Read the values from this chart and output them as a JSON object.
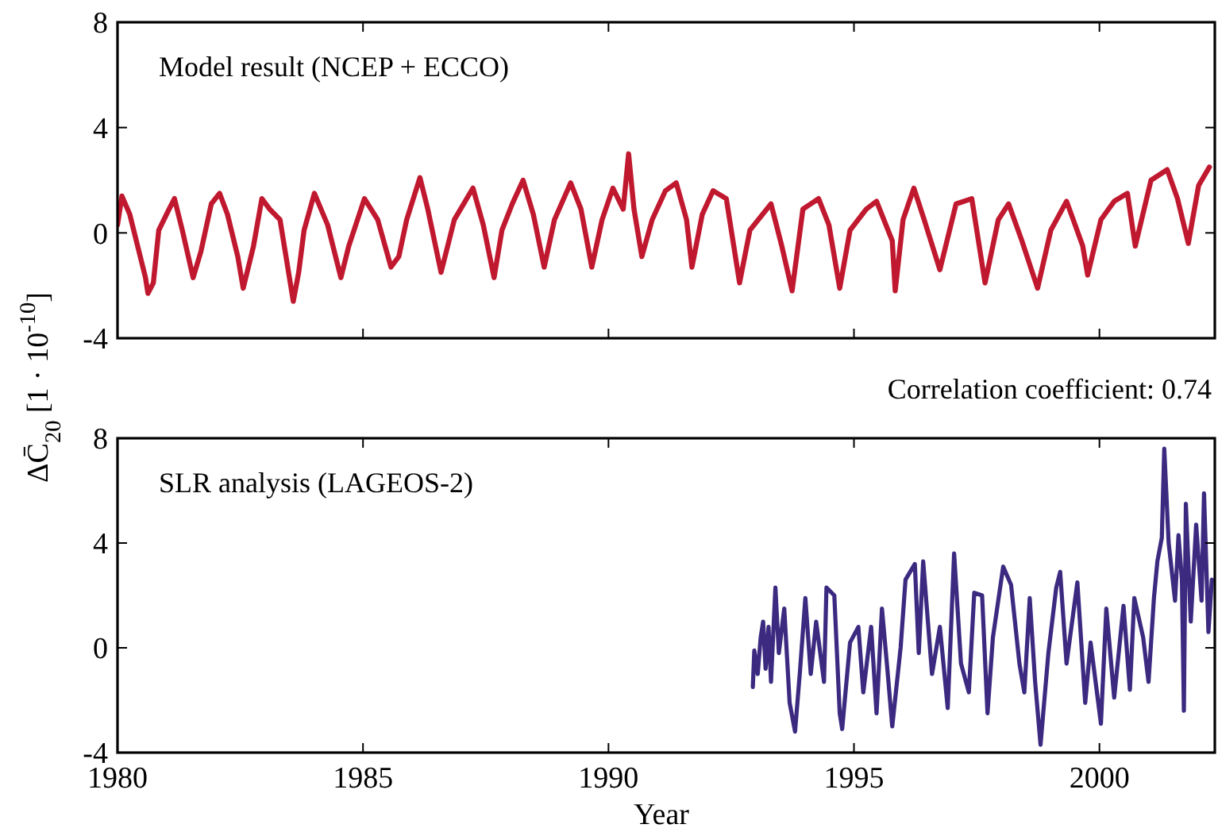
{
  "chart_data": [
    {
      "type": "line",
      "xlim": [
        1980,
        2002.35
      ],
      "xticks": [
        1980,
        1985,
        1990,
        1995,
        2000
      ],
      "ylim": [
        -4,
        8
      ],
      "yticks": [
        -4,
        0,
        4,
        8
      ],
      "tick_labels": "y",
      "grid": false,
      "ylabel": "ΔC̄$_{20}$  [1 · 10$^{-10}$]",
      "annotations": [
        "Model result (NCEP + ECCO)",
        "Correlation coefficient: 0.74"
      ],
      "series": [
        {
          "color": "#c0192f",
          "x": [
            1980.0,
            1980.09,
            1980.25,
            1980.41,
            1980.57,
            1980.62,
            1980.73,
            1980.84,
            1981.05,
            1981.16,
            1981.32,
            1981.54,
            1981.7,
            1981.91,
            1982.08,
            1982.24,
            1982.45,
            1982.56,
            1982.77,
            1982.94,
            1983.1,
            1983.31,
            1983.58,
            1983.69,
            1983.8,
            1984.01,
            1984.28,
            1984.55,
            1984.71,
            1985.03,
            1985.3,
            1985.57,
            1985.73,
            1985.89,
            1986.16,
            1986.32,
            1986.59,
            1986.86,
            1987.24,
            1987.45,
            1987.67,
            1987.83,
            1988.04,
            1988.26,
            1988.47,
            1988.69,
            1988.9,
            1989.23,
            1989.44,
            1989.66,
            1989.87,
            1990.09,
            1990.3,
            1990.41,
            1990.52,
            1990.68,
            1990.89,
            1991.16,
            1991.38,
            1991.59,
            1991.7,
            1991.91,
            1992.13,
            1992.4,
            1992.67,
            1992.88,
            1993.31,
            1993.53,
            1993.74,
            1993.96,
            1994.28,
            1994.49,
            1994.71,
            1994.92,
            1995.25,
            1995.46,
            1995.78,
            1995.84,
            1996.0,
            1996.22,
            1996.43,
            1996.75,
            1997.08,
            1997.4,
            1997.67,
            1997.94,
            1998.15,
            1998.42,
            1998.74,
            1999.01,
            1999.33,
            1999.66,
            1999.76,
            2000.03,
            2000.3,
            2000.57,
            2000.73,
            2001.05,
            2001.38,
            2001.59,
            2001.81,
            2002.02,
            2002.24
          ],
          "values": [
            0.3,
            1.4,
            0.7,
            -0.5,
            -1.7,
            -2.3,
            -1.9,
            0.1,
            0.9,
            1.3,
            0.1,
            -1.7,
            -0.7,
            1.1,
            1.5,
            0.7,
            -0.9,
            -2.1,
            -0.5,
            1.3,
            0.9,
            0.5,
            -2.6,
            -1.5,
            0.1,
            1.5,
            0.3,
            -1.7,
            -0.5,
            1.3,
            0.5,
            -1.3,
            -0.9,
            0.5,
            2.1,
            0.9,
            -1.5,
            0.5,
            1.7,
            0.3,
            -1.7,
            0.1,
            1.1,
            2.0,
            0.7,
            -1.3,
            0.5,
            1.9,
            0.9,
            -1.3,
            0.5,
            1.7,
            0.9,
            3.0,
            0.9,
            -0.9,
            0.5,
            1.6,
            1.9,
            0.5,
            -1.3,
            0.7,
            1.6,
            1.3,
            -1.9,
            0.1,
            1.1,
            -0.5,
            -2.2,
            0.9,
            1.3,
            0.3,
            -2.1,
            0.1,
            0.9,
            1.2,
            -0.3,
            -2.2,
            0.5,
            1.7,
            0.5,
            -1.4,
            1.1,
            1.3,
            -1.9,
            0.5,
            1.1,
            -0.3,
            -2.1,
            0.1,
            1.2,
            -0.5,
            -1.6,
            0.5,
            1.2,
            1.5,
            -0.5,
            2.0,
            2.4,
            1.3,
            -0.4,
            1.8,
            2.5
          ]
        }
      ]
    },
    {
      "type": "line",
      "xlim": [
        1980,
        2002.35
      ],
      "xticks": [
        1980,
        1985,
        1990,
        1995,
        2000
      ],
      "ylim": [
        -4,
        8
      ],
      "yticks": [
        -4,
        0,
        4,
        8
      ],
      "grid": false,
      "xlabel": "Year",
      "annotations": [
        "SLR analysis (LAGEOS-2)"
      ],
      "series": [
        {
          "color": "#3b2a80",
          "x": [
            1992.94,
            1992.97,
            1993.04,
            1993.1,
            1993.15,
            1993.2,
            1993.26,
            1993.31,
            1993.4,
            1993.47,
            1993.58,
            1993.69,
            1993.8,
            1993.9,
            1994.01,
            1994.12,
            1994.23,
            1994.39,
            1994.44,
            1994.6,
            1994.71,
            1994.76,
            1994.92,
            1995.09,
            1995.19,
            1995.35,
            1995.46,
            1995.57,
            1995.68,
            1995.78,
            1995.95,
            1996.05,
            1996.24,
            1996.32,
            1996.41,
            1996.59,
            1996.75,
            1996.91,
            1997.04,
            1997.18,
            1997.34,
            1997.45,
            1997.61,
            1997.72,
            1997.83,
            1998.04,
            1998.2,
            1998.37,
            1998.47,
            1998.58,
            1998.69,
            1998.8,
            1998.96,
            1999.12,
            1999.2,
            1999.33,
            1999.55,
            1999.71,
            1999.82,
            2000.03,
            2000.14,
            2000.3,
            2000.49,
            2000.62,
            2000.71,
            2000.89,
            2001.0,
            2001.11,
            2001.18,
            2001.27,
            2001.32,
            2001.41,
            2001.54,
            2001.61,
            2001.68,
            2001.72,
            2001.76,
            2001.86,
            2001.97,
            2002.08,
            2002.13,
            2002.22,
            2002.29
          ],
          "values": [
            -1.5,
            -0.1,
            -1.0,
            0.4,
            1.0,
            -0.8,
            0.8,
            -1.3,
            2.3,
            -0.2,
            1.5,
            -2.1,
            -3.2,
            -0.9,
            1.9,
            -1.0,
            1.0,
            -1.3,
            2.3,
            2.0,
            -2.5,
            -3.1,
            0.2,
            0.8,
            -1.7,
            0.8,
            -2.5,
            1.5,
            -0.8,
            -3.0,
            0.0,
            2.6,
            3.2,
            -0.2,
            3.3,
            -1.0,
            0.8,
            -2.3,
            3.6,
            -0.6,
            -1.7,
            2.1,
            2.0,
            -2.5,
            0.4,
            3.1,
            2.4,
            -0.6,
            -1.7,
            1.9,
            -1.3,
            -3.7,
            -0.2,
            2.3,
            2.9,
            -0.6,
            2.5,
            -2.1,
            0.2,
            -2.9,
            1.5,
            -1.9,
            1.6,
            -1.6,
            1.9,
            0.4,
            -1.3,
            1.9,
            3.3,
            4.2,
            7.6,
            4.0,
            1.8,
            4.3,
            2.6,
            -2.4,
            5.5,
            1.0,
            4.7,
            1.8,
            5.9,
            0.6,
            2.6
          ]
        }
      ]
    }
  ]
}
